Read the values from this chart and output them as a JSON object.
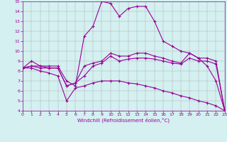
{
  "line_big": [
    8.3,
    9.0,
    8.5,
    8.5,
    8.5,
    7.0,
    6.5,
    11.5,
    12.5,
    15.0,
    14.8,
    13.5,
    14.3,
    14.5,
    14.5,
    13.0,
    11.0,
    10.5,
    10.0,
    9.8,
    9.3,
    8.5,
    7.0,
    4.0
  ],
  "line_mid1": [
    8.3,
    8.5,
    8.5,
    8.3,
    8.3,
    6.5,
    6.8,
    8.5,
    8.8,
    9.0,
    9.8,
    9.5,
    9.5,
    9.8,
    9.8,
    9.5,
    9.3,
    9.0,
    8.8,
    9.8,
    9.3,
    9.3,
    9.0,
    4.0
  ],
  "line_mid2": [
    8.3,
    8.5,
    8.3,
    8.3,
    8.3,
    6.5,
    6.8,
    7.5,
    8.5,
    8.8,
    9.5,
    9.0,
    9.2,
    9.3,
    9.3,
    9.2,
    9.0,
    8.8,
    8.7,
    9.3,
    9.0,
    9.0,
    8.7,
    4.0
  ],
  "line_low": [
    8.3,
    8.3,
    8.0,
    7.8,
    7.5,
    5.0,
    6.3,
    6.5,
    6.8,
    7.0,
    7.0,
    7.0,
    6.8,
    6.7,
    6.5,
    6.3,
    6.0,
    5.8,
    5.5,
    5.3,
    5.0,
    4.8,
    4.5,
    4.0
  ],
  "line_color": "#990099",
  "bg_color": "#d4f0f0",
  "grid_color": "#aaaaaa",
  "xlabel": "Windchill (Refroidissement éolien,°C)",
  "xlim": [
    0,
    23
  ],
  "ylim": [
    4,
    15
  ],
  "yticks": [
    4,
    5,
    6,
    7,
    8,
    9,
    10,
    11,
    12,
    13,
    14,
    15
  ],
  "xticks": [
    0,
    1,
    2,
    3,
    4,
    5,
    6,
    7,
    8,
    9,
    10,
    11,
    12,
    13,
    14,
    15,
    16,
    17,
    18,
    19,
    20,
    21,
    22,
    23
  ]
}
